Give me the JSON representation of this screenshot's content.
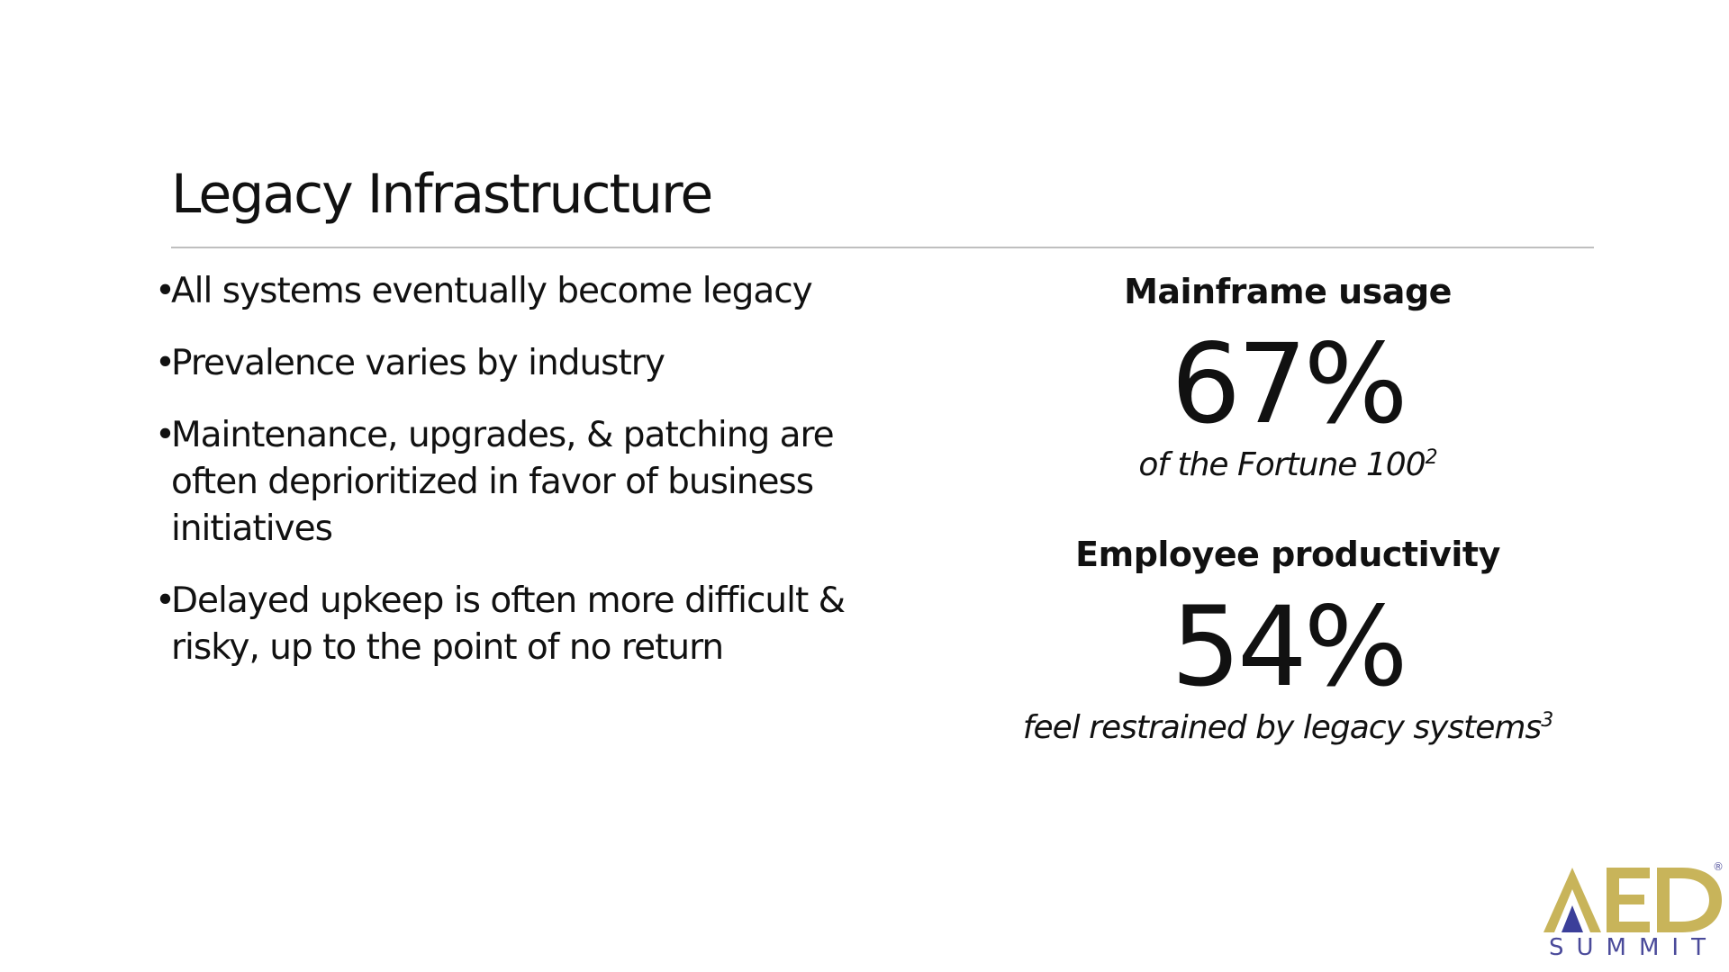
{
  "slide": {
    "title": "Legacy Infrastructure",
    "bullet_marker": "•",
    "bullets": [
      "All systems eventually become legacy",
      "Prevalence varies by industry",
      "Maintenance, upgrades, & patching are often deprioritized in favor of business initiatives",
      "Delayed upkeep is often more difficult & risky, up to the point of no return"
    ]
  },
  "stats": [
    {
      "heading": "Mainframe usage",
      "value": "67%",
      "caption": "of the Fortune 100",
      "footnote": "2"
    },
    {
      "heading": "Employee productivity",
      "value": "54%",
      "caption": "feel restrained by legacy systems",
      "footnote": "3"
    }
  ],
  "logo": {
    "mark": "AED",
    "word": "SUMMIT",
    "reg": "®"
  },
  "colors": {
    "text": "#111111",
    "rule": "#bfbfbf",
    "logo_gold": "#c8b45a",
    "logo_blue": "#4a4a9a"
  }
}
